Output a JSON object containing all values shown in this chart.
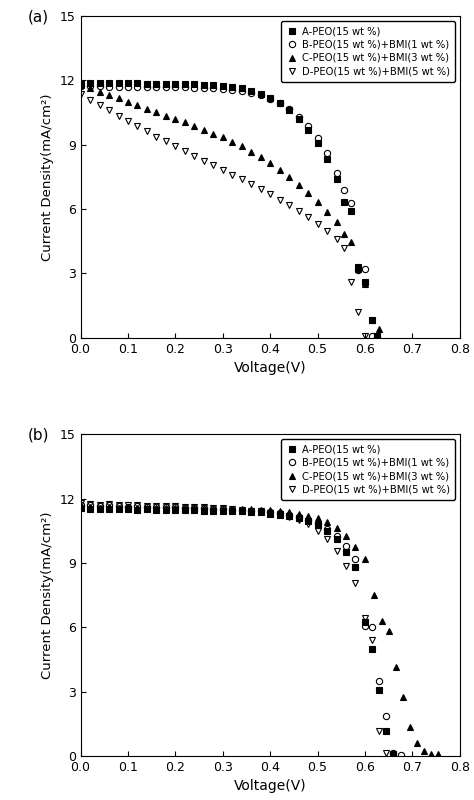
{
  "title_a": "(a)",
  "title_b": "(b)",
  "xlabel": "Voltage(V)",
  "ylabel": "Current Density(mA/cm²)",
  "xlim": [
    0,
    0.8
  ],
  "ylim": [
    0,
    15
  ],
  "xticks": [
    0.0,
    0.1,
    0.2,
    0.3,
    0.4,
    0.5,
    0.6,
    0.7,
    0.8
  ],
  "yticks": [
    0,
    3,
    6,
    9,
    12,
    15
  ],
  "legend_labels": [
    "A-PEO(15 wt %)",
    "B-PEO(15 wt %)+BMI(1 wt %)",
    "C-PEO(15 wt %)+BMI(3 wt %)",
    "D-PEO(15 wt %)+BMI(5 wt %)"
  ],
  "markers": [
    "s",
    "o",
    "^",
    "v"
  ],
  "fillstyles": [
    "full",
    "none",
    "full",
    "none"
  ],
  "panel_a": {
    "A": {
      "x": [
        0.0,
        0.02,
        0.04,
        0.06,
        0.08,
        0.1,
        0.12,
        0.14,
        0.16,
        0.18,
        0.2,
        0.22,
        0.24,
        0.26,
        0.28,
        0.3,
        0.32,
        0.34,
        0.36,
        0.38,
        0.4,
        0.42,
        0.44,
        0.46,
        0.48,
        0.5,
        0.52,
        0.54,
        0.555,
        0.57,
        0.585,
        0.6,
        0.615,
        0.625
      ],
      "y": [
        11.85,
        11.88,
        11.88,
        11.87,
        11.87,
        11.86,
        11.86,
        11.85,
        11.85,
        11.84,
        11.84,
        11.83,
        11.82,
        11.8,
        11.78,
        11.75,
        11.7,
        11.63,
        11.52,
        11.38,
        11.18,
        10.93,
        10.6,
        10.2,
        9.7,
        9.1,
        8.35,
        7.4,
        6.35,
        5.9,
        3.3,
        2.6,
        0.85,
        0.1
      ]
    },
    "B": {
      "x": [
        0.0,
        0.02,
        0.04,
        0.06,
        0.08,
        0.1,
        0.12,
        0.14,
        0.16,
        0.18,
        0.2,
        0.22,
        0.24,
        0.26,
        0.28,
        0.3,
        0.32,
        0.34,
        0.36,
        0.38,
        0.4,
        0.42,
        0.44,
        0.46,
        0.48,
        0.5,
        0.52,
        0.54,
        0.555,
        0.57,
        0.585,
        0.6,
        0.615,
        0.625
      ],
      "y": [
        11.72,
        11.72,
        11.72,
        11.71,
        11.71,
        11.7,
        11.7,
        11.7,
        11.69,
        11.69,
        11.68,
        11.67,
        11.66,
        11.65,
        11.63,
        11.6,
        11.56,
        11.5,
        11.42,
        11.3,
        11.14,
        10.93,
        10.65,
        10.3,
        9.85,
        9.3,
        8.6,
        7.7,
        6.9,
        6.3,
        3.15,
        3.2,
        0.1,
        0.05
      ]
    },
    "C": {
      "x": [
        0.0,
        0.02,
        0.04,
        0.06,
        0.08,
        0.1,
        0.12,
        0.14,
        0.16,
        0.18,
        0.2,
        0.22,
        0.24,
        0.26,
        0.28,
        0.3,
        0.32,
        0.34,
        0.36,
        0.38,
        0.4,
        0.42,
        0.44,
        0.46,
        0.48,
        0.5,
        0.52,
        0.54,
        0.555,
        0.57,
        0.585,
        0.6,
        0.615,
        0.63
      ],
      "y": [
        11.8,
        11.65,
        11.48,
        11.32,
        11.16,
        11.0,
        10.84,
        10.68,
        10.52,
        10.36,
        10.2,
        10.04,
        9.88,
        9.7,
        9.52,
        9.34,
        9.14,
        8.92,
        8.68,
        8.42,
        8.14,
        7.83,
        7.5,
        7.14,
        6.75,
        6.33,
        5.88,
        5.38,
        4.85,
        4.45,
        3.2,
        2.5,
        0.85,
        0.4
      ]
    },
    "D": {
      "x": [
        0.0,
        0.02,
        0.04,
        0.06,
        0.08,
        0.1,
        0.12,
        0.14,
        0.16,
        0.18,
        0.2,
        0.22,
        0.24,
        0.26,
        0.28,
        0.3,
        0.32,
        0.34,
        0.36,
        0.38,
        0.4,
        0.42,
        0.44,
        0.46,
        0.48,
        0.5,
        0.52,
        0.54,
        0.555,
        0.57,
        0.585,
        0.6
      ],
      "y": [
        11.35,
        11.1,
        10.85,
        10.6,
        10.35,
        10.1,
        9.85,
        9.62,
        9.38,
        9.15,
        8.92,
        8.7,
        8.48,
        8.26,
        8.04,
        7.82,
        7.6,
        7.38,
        7.15,
        6.92,
        6.68,
        6.43,
        6.17,
        5.9,
        5.61,
        5.3,
        4.97,
        4.6,
        4.2,
        2.6,
        1.2,
        0.1
      ]
    }
  },
  "panel_b": {
    "A": {
      "x": [
        0.0,
        0.02,
        0.04,
        0.06,
        0.08,
        0.1,
        0.12,
        0.14,
        0.16,
        0.18,
        0.2,
        0.22,
        0.24,
        0.26,
        0.28,
        0.3,
        0.32,
        0.34,
        0.36,
        0.38,
        0.4,
        0.42,
        0.44,
        0.46,
        0.48,
        0.5,
        0.52,
        0.54,
        0.56,
        0.58,
        0.6,
        0.615,
        0.63,
        0.645,
        0.66
      ],
      "y": [
        11.55,
        11.52,
        11.5,
        11.52,
        11.5,
        11.5,
        11.48,
        11.5,
        11.48,
        11.46,
        11.48,
        11.45,
        11.45,
        11.43,
        11.42,
        11.42,
        11.4,
        11.4,
        11.38,
        11.36,
        11.3,
        11.25,
        11.18,
        11.08,
        10.95,
        10.75,
        10.5,
        10.1,
        9.5,
        8.8,
        6.25,
        5.0,
        3.1,
        1.15,
        0.1
      ]
    },
    "B": {
      "x": [
        0.0,
        0.02,
        0.04,
        0.06,
        0.08,
        0.1,
        0.12,
        0.14,
        0.16,
        0.18,
        0.2,
        0.22,
        0.24,
        0.26,
        0.28,
        0.3,
        0.32,
        0.34,
        0.36,
        0.38,
        0.4,
        0.42,
        0.44,
        0.46,
        0.48,
        0.5,
        0.52,
        0.54,
        0.56,
        0.58,
        0.6,
        0.615,
        0.63,
        0.645,
        0.66,
        0.675
      ],
      "y": [
        11.72,
        11.68,
        11.65,
        11.68,
        11.65,
        11.63,
        11.65,
        11.62,
        11.6,
        11.62,
        11.6,
        11.58,
        11.56,
        11.55,
        11.52,
        11.5,
        11.48,
        11.46,
        11.44,
        11.42,
        11.38,
        11.32,
        11.25,
        11.15,
        11.02,
        10.84,
        10.6,
        10.28,
        9.8,
        9.2,
        6.05,
        6.0,
        3.5,
        1.85,
        0.15,
        0.05
      ]
    },
    "C": {
      "x": [
        0.0,
        0.02,
        0.04,
        0.06,
        0.08,
        0.1,
        0.12,
        0.14,
        0.16,
        0.18,
        0.2,
        0.22,
        0.24,
        0.26,
        0.28,
        0.3,
        0.32,
        0.34,
        0.36,
        0.38,
        0.4,
        0.42,
        0.44,
        0.46,
        0.48,
        0.5,
        0.52,
        0.54,
        0.56,
        0.58,
        0.6,
        0.62,
        0.635,
        0.65,
        0.665,
        0.68,
        0.695,
        0.71,
        0.725,
        0.74,
        0.755
      ],
      "y": [
        11.62,
        11.6,
        11.58,
        11.6,
        11.58,
        11.6,
        11.58,
        11.58,
        11.56,
        11.58,
        11.56,
        11.55,
        11.55,
        11.54,
        11.53,
        11.53,
        11.52,
        11.51,
        11.5,
        11.48,
        11.45,
        11.41,
        11.36,
        11.29,
        11.2,
        11.08,
        10.9,
        10.65,
        10.28,
        9.75,
        9.2,
        7.5,
        6.3,
        5.85,
        4.15,
        2.75,
        1.35,
        0.6,
        0.25,
        0.1,
        0.1
      ]
    },
    "D": {
      "x": [
        0.0,
        0.02,
        0.04,
        0.06,
        0.08,
        0.1,
        0.12,
        0.14,
        0.16,
        0.18,
        0.2,
        0.22,
        0.24,
        0.26,
        0.28,
        0.3,
        0.32,
        0.34,
        0.36,
        0.38,
        0.4,
        0.42,
        0.44,
        0.46,
        0.48,
        0.5,
        0.52,
        0.54,
        0.56,
        0.58,
        0.6,
        0.615,
        0.63,
        0.645
      ],
      "y": [
        11.78,
        11.74,
        11.7,
        11.74,
        11.7,
        11.68,
        11.7,
        11.67,
        11.65,
        11.67,
        11.65,
        11.62,
        11.62,
        11.6,
        11.58,
        11.55,
        11.52,
        11.48,
        11.44,
        11.4,
        11.34,
        11.26,
        11.15,
        11.0,
        10.8,
        10.5,
        10.1,
        9.55,
        8.85,
        8.05,
        6.45,
        5.4,
        1.15,
        0.12
      ]
    }
  }
}
